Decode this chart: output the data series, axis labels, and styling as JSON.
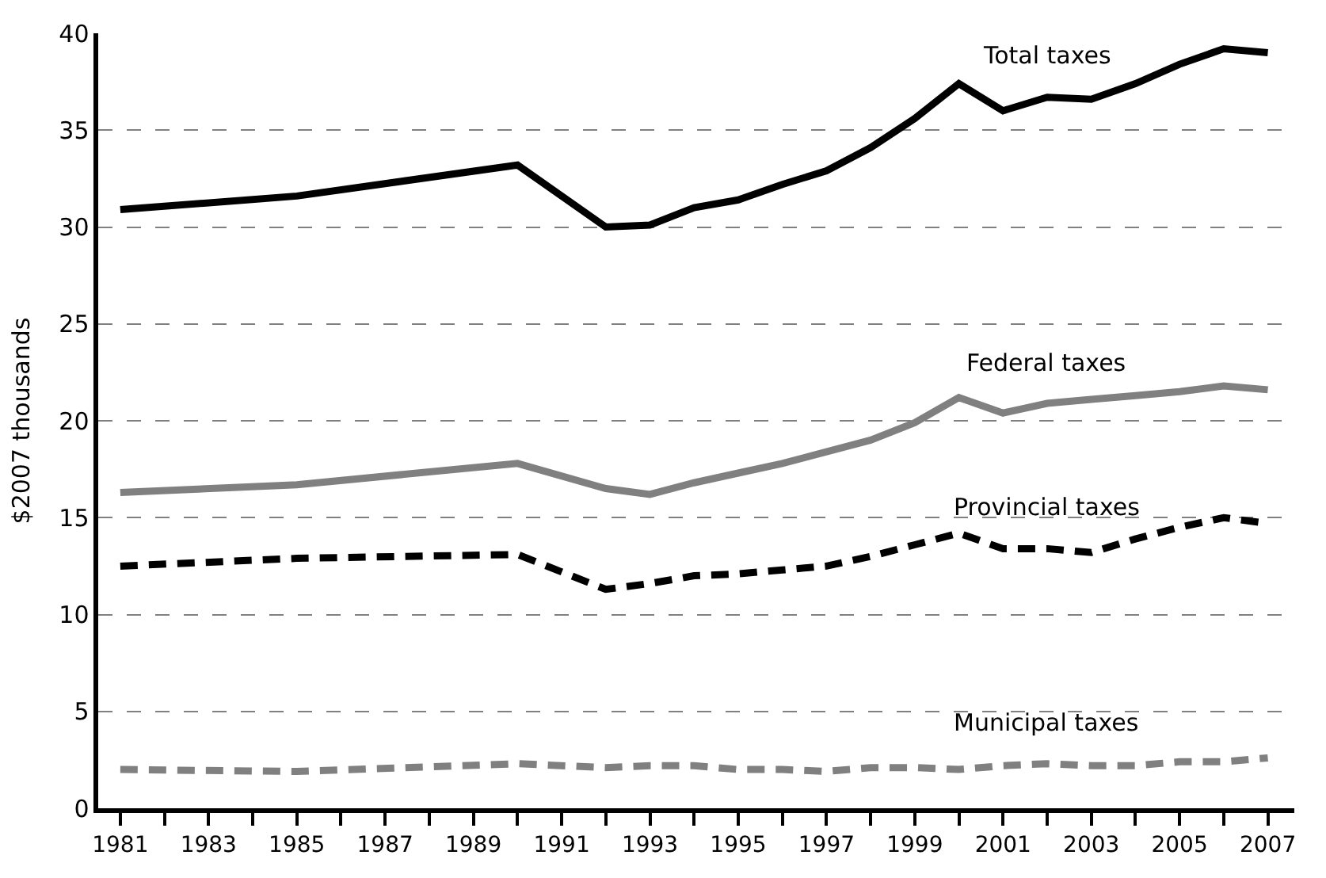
{
  "chart_data": {
    "type": "line",
    "ylabel": "$2007 thousands",
    "x": [
      1981,
      1985,
      1990,
      1992,
      1993,
      1994,
      1995,
      1996,
      1997,
      1998,
      1999,
      2000,
      2001,
      2002,
      2003,
      2004,
      2005,
      2006,
      2007
    ],
    "series": [
      {
        "name": "Total taxes",
        "color": "#000000",
        "line_style": "solid",
        "values": [
          30.9,
          31.6,
          33.2,
          30.0,
          30.1,
          31.0,
          31.4,
          32.2,
          32.9,
          34.1,
          35.6,
          37.4,
          36.0,
          36.7,
          36.6,
          37.4,
          38.4,
          39.2,
          39.0
        ]
      },
      {
        "name": "Federal taxes",
        "color": "#808080",
        "line_style": "solid",
        "values": [
          16.3,
          16.7,
          17.8,
          16.5,
          16.2,
          16.8,
          17.3,
          17.8,
          18.4,
          19.0,
          19.9,
          21.2,
          20.4,
          20.9,
          21.1,
          21.3,
          21.5,
          21.8,
          21.6
        ]
      },
      {
        "name": "Provincial taxes",
        "color": "#000000",
        "line_style": "dashed",
        "values": [
          12.5,
          12.9,
          13.1,
          11.3,
          11.6,
          12.0,
          12.1,
          12.3,
          12.5,
          13.0,
          13.6,
          14.2,
          13.4,
          13.4,
          13.2,
          13.9,
          14.5,
          15.0,
          14.7
        ]
      },
      {
        "name": "Municipal taxes",
        "color": "#808080",
        "line_style": "dashed",
        "values": [
          2.0,
          1.9,
          2.3,
          2.1,
          2.2,
          2.2,
          2.0,
          2.0,
          1.9,
          2.1,
          2.1,
          2.0,
          2.2,
          2.3,
          2.2,
          2.2,
          2.4,
          2.4,
          2.6
        ]
      }
    ],
    "xlim": [
      1980.5,
      2007.6
    ],
    "xticks": [
      1981,
      {
        "value": 1982,
        "label": null
      },
      1983,
      {
        "value": 1984,
        "label": null
      },
      1985,
      {
        "value": 1986,
        "label": null
      },
      1987,
      {
        "value": 1988,
        "label": null
      },
      1989,
      {
        "value": 1990,
        "label": null
      },
      1991,
      {
        "value": 1992,
        "label": null
      },
      1993,
      {
        "value": 1994,
        "label": null
      },
      1995,
      {
        "value": 1996,
        "label": null
      },
      1997,
      {
        "value": 1998,
        "label": null
      },
      1999,
      {
        "value": 2000,
        "label": null
      },
      2001,
      {
        "value": 2002,
        "label": null
      },
      2003,
      {
        "value": 2004,
        "label": null
      },
      2005,
      {
        "value": 2006,
        "label": null
      },
      2007
    ],
    "ylim": [
      0,
      40
    ],
    "yticks": [
      0,
      5,
      10,
      15,
      20,
      25,
      30,
      35,
      40
    ],
    "grid": "y",
    "legend": false,
    "marker": "none"
  }
}
